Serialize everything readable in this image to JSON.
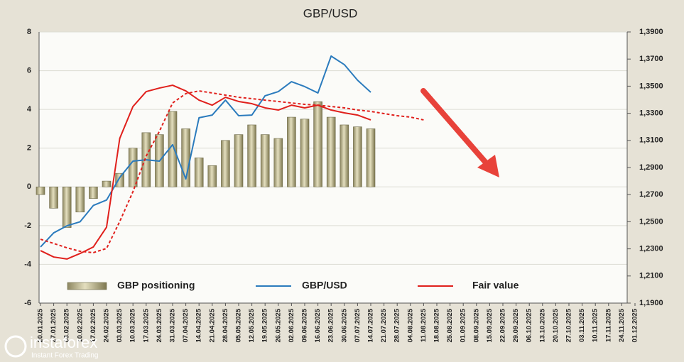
{
  "chart_data": {
    "type": "bar-line",
    "title": "GBP/USD",
    "categories": [
      "20.01.2025",
      "27.01.2025",
      "03.02.2025",
      "10.02.2025",
      "17.02.2025",
      "24.02.2025",
      "03.03.2025",
      "10.03.2025",
      "17.03.2025",
      "24.03.2025",
      "31.03.2025",
      "07.04.2025",
      "14.04.2025",
      "21.04.2025",
      "28.04.2025",
      "05.05.2025",
      "12.05.2025",
      "19.05.2025",
      "26.05.2025",
      "02.06.2025",
      "09.06.2025",
      "16.06.2025",
      "23.06.2025",
      "30.06.2025",
      "07.07.2025",
      "14.07.2025",
      "21.07.2025",
      "28.07.2025",
      "04.08.2025",
      "11.08.2025",
      "18.08.2025",
      "25.08.2025",
      "01.09.2025",
      "08.09.2025",
      "15.09.2025",
      "22.09.2025",
      "29.09.2025",
      "06.10.2025",
      "13.10.2025",
      "20.10.2025",
      "27.10.2025",
      "03.11.2025",
      "10.11.2025",
      "17.11.2025",
      "24.11.2025",
      "01.12.2025"
    ],
    "series": [
      {
        "name": "GBP positioning",
        "type": "bar",
        "color": "#c9c39b",
        "axis": "y",
        "values": [
          -0.4,
          -1.1,
          -2.1,
          -1.3,
          -0.6,
          0.3,
          0.7,
          2.0,
          2.8,
          2.7,
          3.9,
          3.0,
          1.5,
          1.1,
          2.4,
          2.7,
          3.2,
          2.7,
          2.5,
          3.6,
          3.5,
          4.4,
          3.6,
          3.2,
          3.1,
          3.0,
          null,
          null,
          null,
          null,
          null,
          null,
          null,
          null,
          null,
          null,
          null,
          null,
          null,
          null,
          null,
          null,
          null,
          null,
          null,
          null
        ]
      },
      {
        "name": "GBP/USD",
        "type": "line",
        "color": "#2b7bbd",
        "axis": "y2",
        "values": [
          1.2314,
          1.2418,
          1.247,
          1.25,
          1.262,
          1.266,
          1.2827,
          1.2947,
          1.2957,
          1.2947,
          1.3068,
          1.2816,
          1.3267,
          1.3287,
          1.3397,
          1.3282,
          1.3287,
          1.3429,
          1.346,
          1.3533,
          1.3497,
          1.345,
          1.3722,
          1.3659,
          1.3544,
          1.3455,
          null,
          null,
          null,
          null,
          null,
          null,
          null,
          null,
          null,
          null,
          null,
          null,
          null,
          null,
          null,
          null,
          null,
          null,
          null,
          null
        ]
      },
      {
        "name": "Fair value",
        "type": "line",
        "color": "#e0201c",
        "axis": "y2",
        "values": [
          1.2287,
          1.224,
          1.2225,
          1.2266,
          1.2314,
          1.246,
          1.3115,
          1.335,
          1.346,
          1.3486,
          1.3507,
          1.3465,
          1.3397,
          1.336,
          1.3418,
          1.3387,
          1.3371,
          1.334,
          1.3324,
          1.336,
          1.334,
          1.336,
          1.3324,
          1.3303,
          1.3287,
          1.3251,
          null,
          null,
          null,
          null,
          null,
          null,
          null,
          null,
          null,
          null,
          null,
          null,
          null,
          null,
          null,
          null,
          null,
          null,
          null,
          null
        ]
      },
      {
        "type": "dashed-line",
        "color": "#e0201c",
        "axis": "y2",
        "values": [
          1.2371,
          1.234,
          1.2308,
          1.2282,
          1.2272,
          1.2303,
          1.2502,
          1.2722,
          1.2984,
          1.3167,
          1.3376,
          1.3445,
          1.3465,
          1.345,
          1.3434,
          1.3418,
          1.3408,
          1.3397,
          1.3387,
          1.3376,
          1.3366,
          1.336,
          1.335,
          1.334,
          1.3324,
          1.3314,
          1.3298,
          1.3282,
          1.3272,
          1.3251,
          null,
          null,
          null,
          null,
          null,
          null,
          null,
          null,
          null,
          null,
          null,
          null,
          null,
          null,
          null,
          null
        ]
      }
    ],
    "ylim": [
      -6,
      8
    ],
    "yticks": [
      -6,
      -4,
      -2,
      0,
      2,
      4,
      6,
      8
    ],
    "y2lim": [
      1.19,
      1.39
    ],
    "y2ticks": [
      {
        "value": 1.19,
        "label": "1,1900"
      },
      {
        "value": 1.21,
        "label": "1,2100"
      },
      {
        "value": 1.23,
        "label": "1,2300"
      },
      {
        "value": 1.25,
        "label": "1,2500"
      },
      {
        "value": 1.27,
        "label": "1,2700"
      },
      {
        "value": 1.29,
        "label": "1,2900"
      },
      {
        "value": 1.31,
        "label": "1,3100"
      },
      {
        "value": 1.33,
        "label": "1,3300"
      },
      {
        "value": 1.35,
        "label": "1,3500"
      },
      {
        "value": 1.37,
        "label": "1,3700"
      },
      {
        "value": 1.39,
        "label": "1,3900"
      }
    ],
    "grid": true
  },
  "watermark": {
    "brand": "instaforex",
    "tagline": "Instant Forex Trading"
  }
}
